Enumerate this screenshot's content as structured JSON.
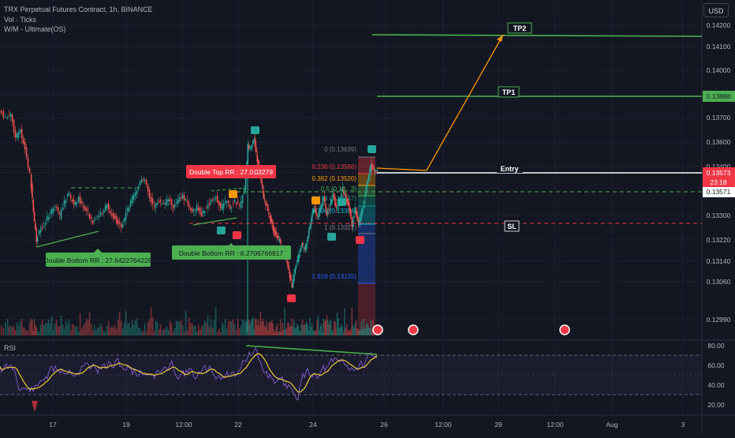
{
  "legend": {
    "title": "TRX Perpetual Futures Contract, 1h, BINANCE",
    "vol": "Vol · Ticks",
    "indicator": "W/M - Ultimate(OS)"
  },
  "currency_button": "USD",
  "rsi_label": "RSI",
  "price_axis": {
    "ticks": [
      "0.14200",
      "0.14100",
      "0.14000",
      "0.13800",
      "0.13700",
      "0.13600",
      "0.13400",
      "0.13300",
      "0.13220",
      "0.13140",
      "0.13060",
      "0.12990"
    ],
    "badge_tp1": "0.13888",
    "badge_last": "0.13573",
    "badge_countdown": "23:18",
    "badge_entry": "0.13571"
  },
  "rsi_axis": {
    "ticks": [
      "80.00",
      "60.00",
      "40.00",
      "20.00"
    ]
  },
  "time_axis": {
    "ticks": [
      "17",
      "19",
      "12:00",
      "22",
      "24",
      "26",
      "12:00",
      "29",
      "12:00",
      "Aug",
      "3"
    ]
  },
  "annotations": {
    "tp2": "TP2",
    "tp1": "TP1",
    "entry": "Entry",
    "sl": "SL",
    "double_top": "Double Top RR : 27.0...",
    "double_top_value": "03279",
    "double_bottom_1": "Double Bottom RR : 27.6422764228",
    "double_bottom_2": "Double Bottom RR : 8.2706766917"
  },
  "fib_levels": [
    {
      "label": "0 (0.13639)",
      "color": "#787b86"
    },
    {
      "label": "0.236 (0.13566)",
      "color": "#f23645"
    },
    {
      "label": "0.382 (0.13520)",
      "color": "#ff9800"
    },
    {
      "label": "0.5 (0.13...3)",
      "color": "#4caf50"
    },
    {
      "label": "0.618 (0.13447)",
      "color": "#089981"
    },
    {
      "label": "0.786 (0.13394)",
      "color": "#00bcd4"
    },
    {
      "label": "1 (0.13327)",
      "color": "#787b86"
    },
    {
      "label": "1.618 (0.13135)",
      "color": "#2962ff"
    }
  ],
  "colors": {
    "background": "#131722",
    "up": "#26a69a",
    "down": "#ef5350",
    "tp_line": "#4caf50",
    "entry_line": "#ffffff",
    "sl_line": "#f23645",
    "projection": "#ff9800",
    "rsi_line": "#7e57c2",
    "rsi_ma": "#fdd835"
  }
}
